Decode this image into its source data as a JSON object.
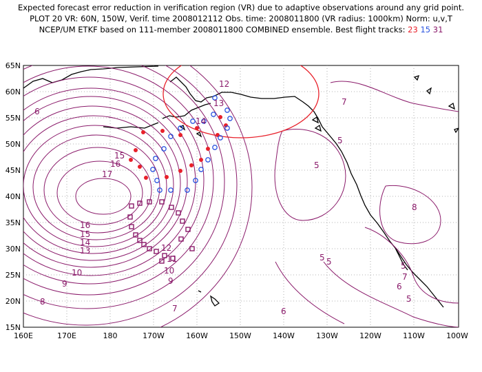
{
  "header": {
    "line1": "Expected forecast error reduction in verification region (VR) due to adaptive observations around any grid point.",
    "line2": "PLOT 20 VR: 60N, 150W, Verif. time 2008012112 Obs. time: 2008011800 (VR radius: 1000km) Norm: u,v,T",
    "line3_prefix": "NCEP/UM ETKF based on 111-member 2008011800 COMBINED ensemble.  Best flight tracks:",
    "track_a": "23",
    "track_b": "15",
    "track_c": "31"
  },
  "map": {
    "lon_labels": [
      "160E",
      "170E",
      "180",
      "170W",
      "160W",
      "150W",
      "140W",
      "130W",
      "120W",
      "110W",
      "100W"
    ],
    "lat_labels": [
      "15N",
      "20N",
      "25N",
      "30N",
      "35N",
      "40N",
      "45N",
      "50N",
      "55N",
      "60N",
      "65N"
    ],
    "contour_labels": [
      "6",
      "12",
      "13",
      "14",
      "15",
      "16",
      "17",
      "16",
      "15",
      "14",
      "13",
      "12",
      "11",
      "10",
      "10",
      "9",
      "9",
      "8",
      "7",
      "7",
      "5",
      "5",
      "5",
      "5",
      "5",
      "6",
      "8",
      "6",
      "7",
      "5"
    ],
    "colors": {
      "contour": "#8a1a6a",
      "vr_circle": "#e8202a",
      "track_red": "#e8202a",
      "track_blue": "#2c55e0",
      "track_purple": "#8a1a6a"
    }
  }
}
